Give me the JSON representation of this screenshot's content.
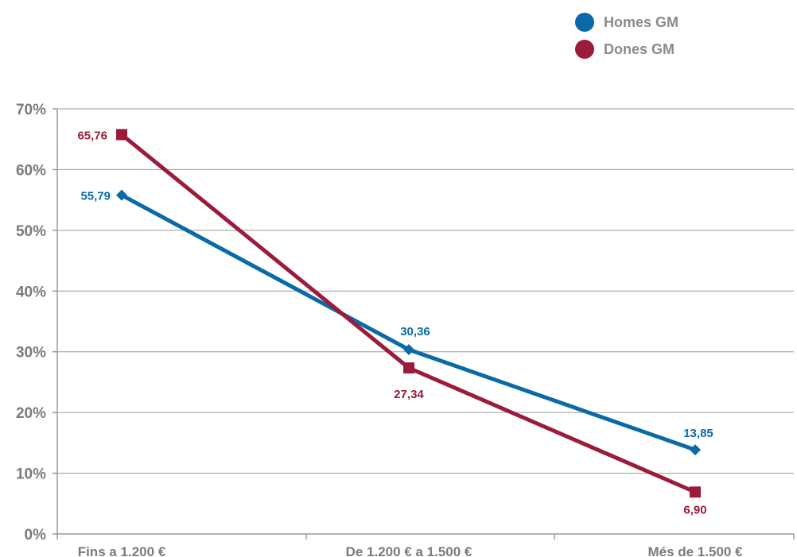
{
  "chart_data": {
    "type": "line",
    "categories": [
      "Fins a 1.200 €",
      "De 1.200 € a 1.500 €",
      "Més de 1.500 €"
    ],
    "y_ticks": [
      "0%",
      "10%",
      "20%",
      "30%",
      "40%",
      "50%",
      "60%",
      "70%"
    ],
    "ylim": [
      0,
      70
    ],
    "grid": true,
    "legend_position": "top-right",
    "series": [
      {
        "name": "Homes GM",
        "color": "#0a6aa8",
        "marker": "diamond",
        "values": [
          55.79,
          30.36,
          13.85
        ],
        "labels": [
          "55,79",
          "30,36",
          "13,85"
        ]
      },
      {
        "name": "Dones GM",
        "color": "#9b1b3a",
        "marker": "square",
        "values": [
          65.76,
          27.34,
          6.9
        ],
        "labels": [
          "65,76",
          "27,34",
          "6,90"
        ]
      }
    ]
  }
}
